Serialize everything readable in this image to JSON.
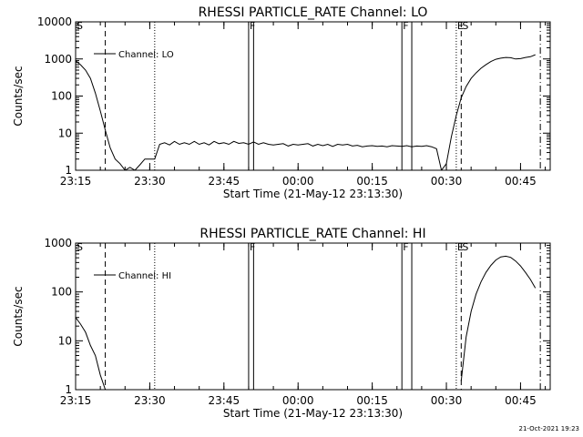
{
  "footer": {
    "timestamp": "21-Oct-2021 19:23"
  },
  "chart_data": [
    {
      "type": "line",
      "title": "RHESSI PARTICLE_RATE Channel: LO",
      "xlabel": "Start Time (21-May-12 23:13:30)",
      "ylabel": "Counts/sec",
      "yscale": "log",
      "ylim": [
        1,
        10000
      ],
      "xlim": [
        "23:15",
        "00:51"
      ],
      "xticks": [
        "23:15",
        "23:30",
        "23:45",
        "00:00",
        "00:15",
        "00:30",
        "00:45"
      ],
      "yticks": [
        "1",
        "10",
        "100",
        "1000",
        "10000"
      ],
      "grid": false,
      "legend": {
        "position": "top-left",
        "entries": [
          "Channel: LO"
        ]
      },
      "series": [
        {
          "name": "Channel: LO",
          "x": [
            "23:15",
            "23:16",
            "23:17",
            "23:18",
            "23:19",
            "23:20",
            "23:21",
            "23:22",
            "23:23",
            "23:24",
            "23:25",
            "23:26",
            "23:27",
            "23:28",
            "23:29",
            "23:30",
            "23:31",
            "23:32",
            "23:33",
            "23:34",
            "23:35",
            "23:36",
            "23:37",
            "23:38",
            "23:39",
            "23:40",
            "23:41",
            "23:42",
            "23:43",
            "23:44",
            "23:45",
            "23:46",
            "23:47",
            "23:48",
            "23:49",
            "23:50",
            "23:51",
            "23:52",
            "23:53",
            "23:54",
            "23:55",
            "23:56",
            "23:57",
            "23:58",
            "23:59",
            "00:00",
            "00:01",
            "00:02",
            "00:03",
            "00:04",
            "00:05",
            "00:06",
            "00:07",
            "00:08",
            "00:09",
            "00:10",
            "00:11",
            "00:12",
            "00:13",
            "00:14",
            "00:15",
            "00:16",
            "00:17",
            "00:18",
            "00:19",
            "00:20",
            "00:21",
            "00:22",
            "00:23",
            "00:24",
            "00:25",
            "00:26",
            "00:27",
            "00:28",
            "00:29",
            "00:30",
            "00:31",
            "00:32",
            "00:33",
            "00:34",
            "00:35",
            "00:36",
            "00:37",
            "00:38",
            "00:39",
            "00:40",
            "00:41",
            "00:42",
            "00:43",
            "00:44",
            "00:45",
            "00:46",
            "00:47",
            "00:48"
          ],
          "y": [
            900,
            700,
            500,
            300,
            120,
            40,
            12,
            4,
            2,
            1.5,
            1,
            1.2,
            1,
            1.4,
            2,
            2,
            2,
            5,
            5.5,
            4.8,
            6,
            5,
            5.5,
            5,
            6,
            5,
            5.5,
            4.8,
            6,
            5.2,
            5.5,
            5,
            6,
            5.3,
            5.5,
            5,
            5.8,
            5,
            5.5,
            5,
            4.8,
            5,
            5.2,
            4.5,
            5,
            4.8,
            5,
            5.2,
            4.5,
            5,
            4.6,
            5,
            4.4,
            5,
            4.8,
            5,
            4.5,
            4.7,
            4.3,
            4.5,
            4.6,
            4.4,
            4.5,
            4.3,
            4.6,
            4.5,
            4.4,
            4.6,
            4.3,
            4.5,
            4.4,
            4.6,
            4.3,
            3.8,
            1,
            1.5,
            8,
            30,
            90,
            180,
            300,
            420,
            560,
            700,
            850,
            980,
            1050,
            1100,
            1080,
            1000,
            1020,
            1100,
            1150,
            1300
          ]
        }
      ],
      "markers": [
        {
          "time": "23:15",
          "label": "S",
          "style": "solid"
        },
        {
          "time": "23:21",
          "label": "",
          "style": "dashed"
        },
        {
          "time": "23:31",
          "label": "",
          "style": "dotted"
        },
        {
          "time": "23:50",
          "label": "F",
          "style": "solid"
        },
        {
          "time": "23:51",
          "label": "",
          "style": "solid"
        },
        {
          "time": "00:21",
          "label": "F",
          "style": "solid"
        },
        {
          "time": "00:23",
          "label": "",
          "style": "solid"
        },
        {
          "time": "00:32",
          "label": "E",
          "style": "dotted"
        },
        {
          "time": "00:33",
          "label": "S",
          "style": "dashed"
        },
        {
          "time": "00:49",
          "label": "",
          "style": "dashdot"
        }
      ]
    },
    {
      "type": "line",
      "title": "RHESSI PARTICLE_RATE Channel: HI",
      "xlabel": "Start Time (21-May-12 23:13:30)",
      "ylabel": "Counts/sec",
      "yscale": "log",
      "ylim": [
        1,
        1000
      ],
      "xlim": [
        "23:15",
        "00:51"
      ],
      "xticks": [
        "23:15",
        "23:30",
        "23:45",
        "00:00",
        "00:15",
        "00:30",
        "00:45"
      ],
      "yticks": [
        "1",
        "10",
        "100",
        "1000"
      ],
      "grid": false,
      "legend": {
        "position": "top-left",
        "entries": [
          "Channel: HI"
        ]
      },
      "series": [
        {
          "name": "Channel: HI",
          "x": [
            "23:15",
            "23:16",
            "23:17",
            "23:18",
            "23:19",
            "23:20",
            "23:21",
            "00:33",
            "00:34",
            "00:35",
            "00:36",
            "00:37",
            "00:38",
            "00:39",
            "00:40",
            "00:41",
            "00:42",
            "00:43",
            "00:44",
            "00:45",
            "00:46",
            "00:47",
            "00:48"
          ],
          "y": [
            30,
            22,
            15,
            8,
            5,
            2,
            1,
            1.5,
            12,
            40,
            90,
            160,
            250,
            350,
            450,
            520,
            540,
            510,
            430,
            340,
            250,
            180,
            120
          ]
        }
      ],
      "markers": [
        {
          "time": "23:15",
          "label": "S",
          "style": "solid"
        },
        {
          "time": "23:21",
          "label": "",
          "style": "dashed"
        },
        {
          "time": "23:31",
          "label": "",
          "style": "dotted"
        },
        {
          "time": "23:50",
          "label": "F",
          "style": "solid"
        },
        {
          "time": "23:51",
          "label": "",
          "style": "solid"
        },
        {
          "time": "00:21",
          "label": "F",
          "style": "solid"
        },
        {
          "time": "00:23",
          "label": "",
          "style": "solid"
        },
        {
          "time": "00:32",
          "label": "E",
          "style": "dotted"
        },
        {
          "time": "00:33",
          "label": "S",
          "style": "dashed"
        },
        {
          "time": "00:49",
          "label": "",
          "style": "dashdot"
        }
      ]
    }
  ]
}
